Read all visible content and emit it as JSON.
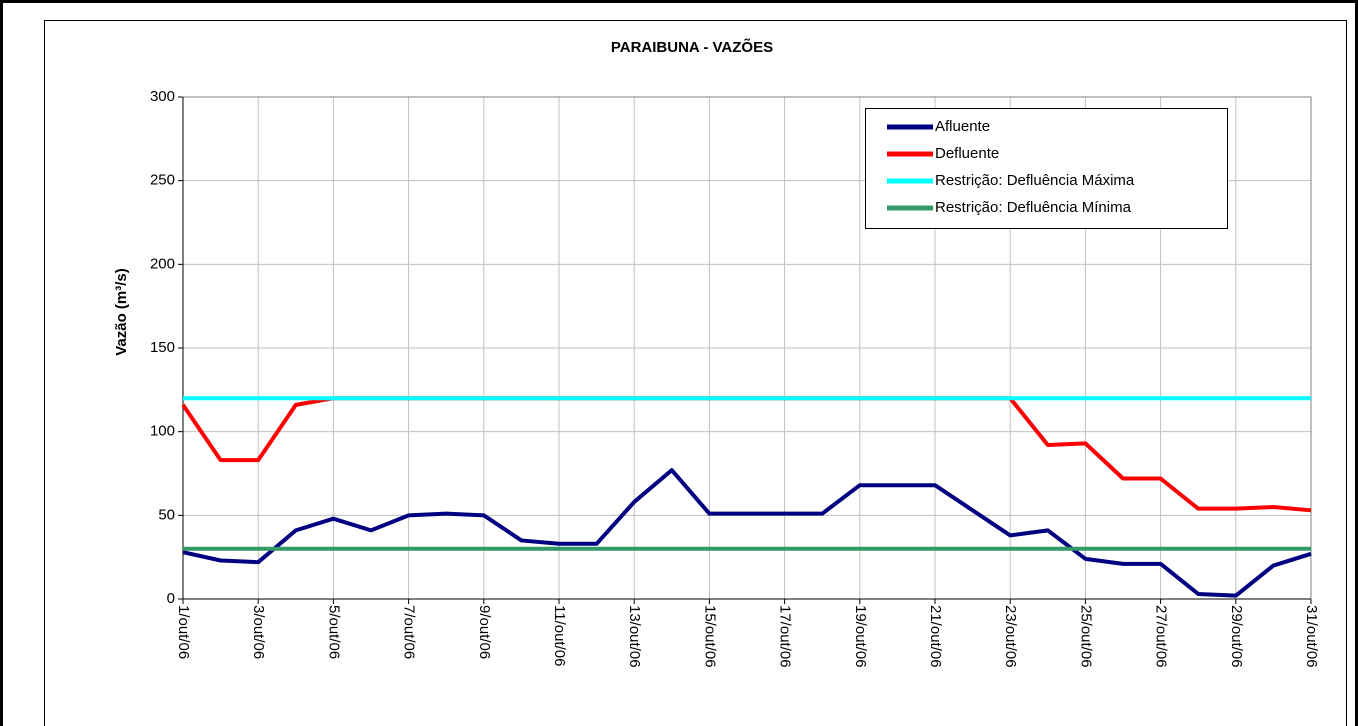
{
  "chart_data": {
    "type": "line",
    "title": "PARAIBUNA - VAZÕES",
    "y_label": "Vazão (m³/s)",
    "categories": [
      "1/out/06",
      null,
      "3/out/06",
      null,
      "5/out/06",
      null,
      "7/out/06",
      null,
      "9/out/06",
      null,
      "11/out/06",
      null,
      "13/out/06",
      null,
      "15/out/06",
      null,
      "17/out/06",
      null,
      "19/out/06",
      null,
      "21/out/06",
      null,
      "23/out/06",
      null,
      "25/out/06",
      null,
      "27/out/06",
      null,
      "29/out/06",
      null,
      "31/out/06"
    ],
    "series": [
      {
        "name": "Afluente",
        "color": "#000080",
        "values": [
          28,
          23,
          22,
          41,
          48,
          41,
          50,
          51,
          50,
          35,
          33,
          33,
          58,
          77,
          51,
          51,
          51,
          51,
          68,
          68,
          68,
          53,
          38,
          41,
          24,
          21,
          21,
          3,
          2,
          20,
          27
        ]
      },
      {
        "name": "Defluente",
        "color": "#ff0000",
        "values": [
          116,
          83,
          83,
          116,
          120,
          120,
          120,
          120,
          120,
          120,
          120,
          120,
          120,
          120,
          120,
          120,
          120,
          120,
          120,
          120,
          120,
          120,
          120,
          92,
          93,
          72,
          72,
          54,
          54,
          55,
          53
        ]
      },
      {
        "name": "Restrição: Defluência Máxima",
        "color": "#00ffff",
        "values": [
          120,
          120,
          120,
          120,
          120,
          120,
          120,
          120,
          120,
          120,
          120,
          120,
          120,
          120,
          120,
          120,
          120,
          120,
          120,
          120,
          120,
          120,
          120,
          120,
          120,
          120,
          120,
          120,
          120,
          120,
          120
        ]
      },
      {
        "name": "Restrição: Defluência Mínima",
        "color": "#339966",
        "values": [
          30,
          30,
          30,
          30,
          30,
          30,
          30,
          30,
          30,
          30,
          30,
          30,
          30,
          30,
          30,
          30,
          30,
          30,
          30,
          30,
          30,
          30,
          30,
          30,
          30,
          30,
          30,
          30,
          30,
          30,
          30
        ]
      }
    ],
    "ylim": [
      0,
      300
    ],
    "yticks": [
      0,
      50,
      100,
      150,
      200,
      250,
      300
    ],
    "grid": true,
    "legend": "upper right"
  }
}
